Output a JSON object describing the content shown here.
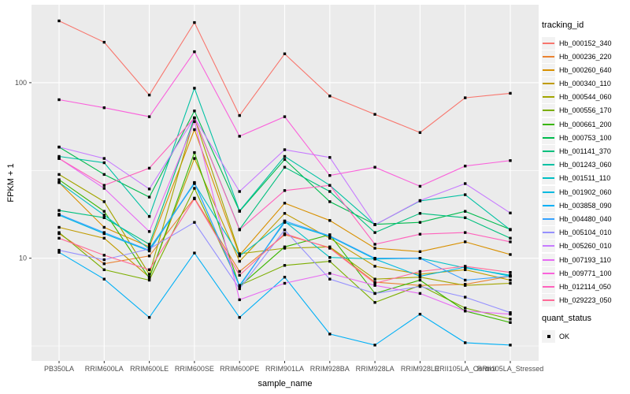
{
  "chart_data": {
    "type": "line",
    "title": "",
    "xlabel": "sample_name",
    "ylabel": "FPKM + 1",
    "y_scale": "log10",
    "ylim": [
      2.6,
      278
    ],
    "y_major_ticks": [
      10,
      100
    ],
    "y_minor_gridlines": [
      3.162,
      31.623
    ],
    "grid": true,
    "legend_position": "right",
    "point_shape": "filled-black-square",
    "categories": [
      "PB350LA",
      "RRIM600LA",
      "RRIM600LE",
      "RRIM600SE",
      "RRIM600PE",
      "RRIM901LA",
      "RRIM928BA",
      "RRIM928LA",
      "RRIM928LE",
      "RRII105LA_Control",
      "RRII105LA_Stressed"
    ],
    "series": [
      {
        "name": "Hb_000152_340",
        "color": "#F8766D",
        "values": [
          225,
          170,
          85,
          220,
          65,
          146,
          84,
          66,
          52,
          82,
          87
        ]
      },
      {
        "name": "Hb_000236_220",
        "color": "#EA8331",
        "values": [
          13.8,
          9.3,
          10.3,
          22,
          8.4,
          13.6,
          11.5,
          7.3,
          7.0,
          7.1,
          7.9
        ]
      },
      {
        "name": "Hb_000260_640",
        "color": "#D89000",
        "values": [
          27,
          15,
          11.6,
          54,
          10.4,
          20.6,
          16.4,
          11.4,
          10.9,
          12.4,
          10.5
        ]
      },
      {
        "name": "Hb_000340_110",
        "color": "#C09B00",
        "values": [
          15,
          13,
          7.8,
          37,
          9.6,
          18,
          13,
          9.0,
          8.1,
          8.6,
          7.5
        ]
      },
      {
        "name": "Hb_000544_060",
        "color": "#A3A500",
        "values": [
          30,
          21,
          8.1,
          63,
          10.6,
          11.4,
          11.6,
          7.6,
          7.8,
          7.0,
          7.2
        ]
      },
      {
        "name": "Hb_000556_170",
        "color": "#7CAE00",
        "values": [
          14,
          8.6,
          7.5,
          25,
          7.0,
          9.1,
          9.6,
          5.6,
          7.0,
          5.2,
          4.5
        ]
      },
      {
        "name": "Hb_000661_200",
        "color": "#39B600",
        "values": [
          28,
          18.5,
          7.7,
          40,
          6.9,
          11.6,
          13.6,
          6.3,
          7.5,
          5.0,
          4.3
        ]
      },
      {
        "name": "Hb_000753_100",
        "color": "#00BB4E",
        "values": [
          43,
          30,
          22.3,
          69,
          18.5,
          36.5,
          21,
          15.6,
          16,
          18.5,
          14.6
        ]
      },
      {
        "name": "Hb_001141_370",
        "color": "#00BF7D",
        "values": [
          18.7,
          17,
          12,
          63,
          14.6,
          33,
          24,
          14,
          18,
          17,
          13
        ]
      },
      {
        "name": "Hb_001243_060",
        "color": "#00C1A3",
        "values": [
          38,
          35,
          17.3,
          93,
          18.6,
          38,
          26,
          15.5,
          21.2,
          23,
          14.5
        ]
      },
      {
        "name": "Hb_001511_110",
        "color": "#00BFC4",
        "values": [
          27,
          17.6,
          11.3,
          26.6,
          10.3,
          16.2,
          10.1,
          9.9,
          10,
          8.8,
          8.0
        ]
      },
      {
        "name": "Hb_001902_060",
        "color": "#00BAE0",
        "values": [
          17.6,
          13.8,
          11.0,
          26.8,
          7.0,
          16.0,
          13.3,
          9.9,
          7.9,
          8.9,
          7.9
        ]
      },
      {
        "name": "Hb_003858_090",
        "color": "#00B0F6",
        "values": [
          10.8,
          7.6,
          4.6,
          10.7,
          4.6,
          7.8,
          3.7,
          3.2,
          4.8,
          3.3,
          3.2
        ]
      },
      {
        "name": "Hb_004480_040",
        "color": "#35A2FF",
        "values": [
          17.8,
          14,
          11.1,
          27,
          6.9,
          16.3,
          13.4,
          10,
          10,
          7.5,
          7.9
        ]
      },
      {
        "name": "Hb_005104_010",
        "color": "#9590FF",
        "values": [
          11.1,
          9.8,
          11.3,
          16,
          6.7,
          14.5,
          7.6,
          6.3,
          6.9,
          6.0,
          4.9
        ]
      },
      {
        "name": "Hb_005260_010",
        "color": "#C77CFF",
        "values": [
          43,
          37,
          24.8,
          63,
          24,
          41.5,
          37.5,
          15.5,
          21.3,
          26.6,
          18.1
        ]
      },
      {
        "name": "Hb_007193_110",
        "color": "#E76BF3",
        "values": [
          37,
          25,
          14.2,
          60,
          5.8,
          7.2,
          8.2,
          7.0,
          6.3,
          5.0,
          4.8
        ]
      },
      {
        "name": "Hb_009771_100",
        "color": "#FA62DB",
        "values": [
          80,
          72,
          64,
          150,
          49.5,
          64,
          29.6,
          33,
          25.7,
          33.5,
          36
        ]
      },
      {
        "name": "Hb_012114_050",
        "color": "#FF62BC",
        "values": [
          37,
          26,
          32.6,
          63,
          14.5,
          24.3,
          26,
          12,
          13.7,
          14,
          12.4
        ]
      },
      {
        "name": "Hb_029223_050",
        "color": "#FF6A98",
        "values": [
          13,
          10.4,
          8.6,
          21.8,
          8.0,
          13.8,
          11.4,
          7.2,
          8.4,
          9.0,
          8.3
        ]
      }
    ]
  },
  "legends": {
    "color_legend_title": "tracking_id",
    "shape_legend_title": "quant_status",
    "shape_legend_items": [
      {
        "label": "OK"
      }
    ]
  },
  "colors": {
    "panel_bg": "#EBEBEB",
    "grid_major": "#FFFFFF",
    "grid_minor": "#FFFFFF",
    "legend_key_bg": "#F2F2F2",
    "tick_text": "#4D4D4D",
    "axis_title_text": "#000000",
    "point": "#000000"
  }
}
